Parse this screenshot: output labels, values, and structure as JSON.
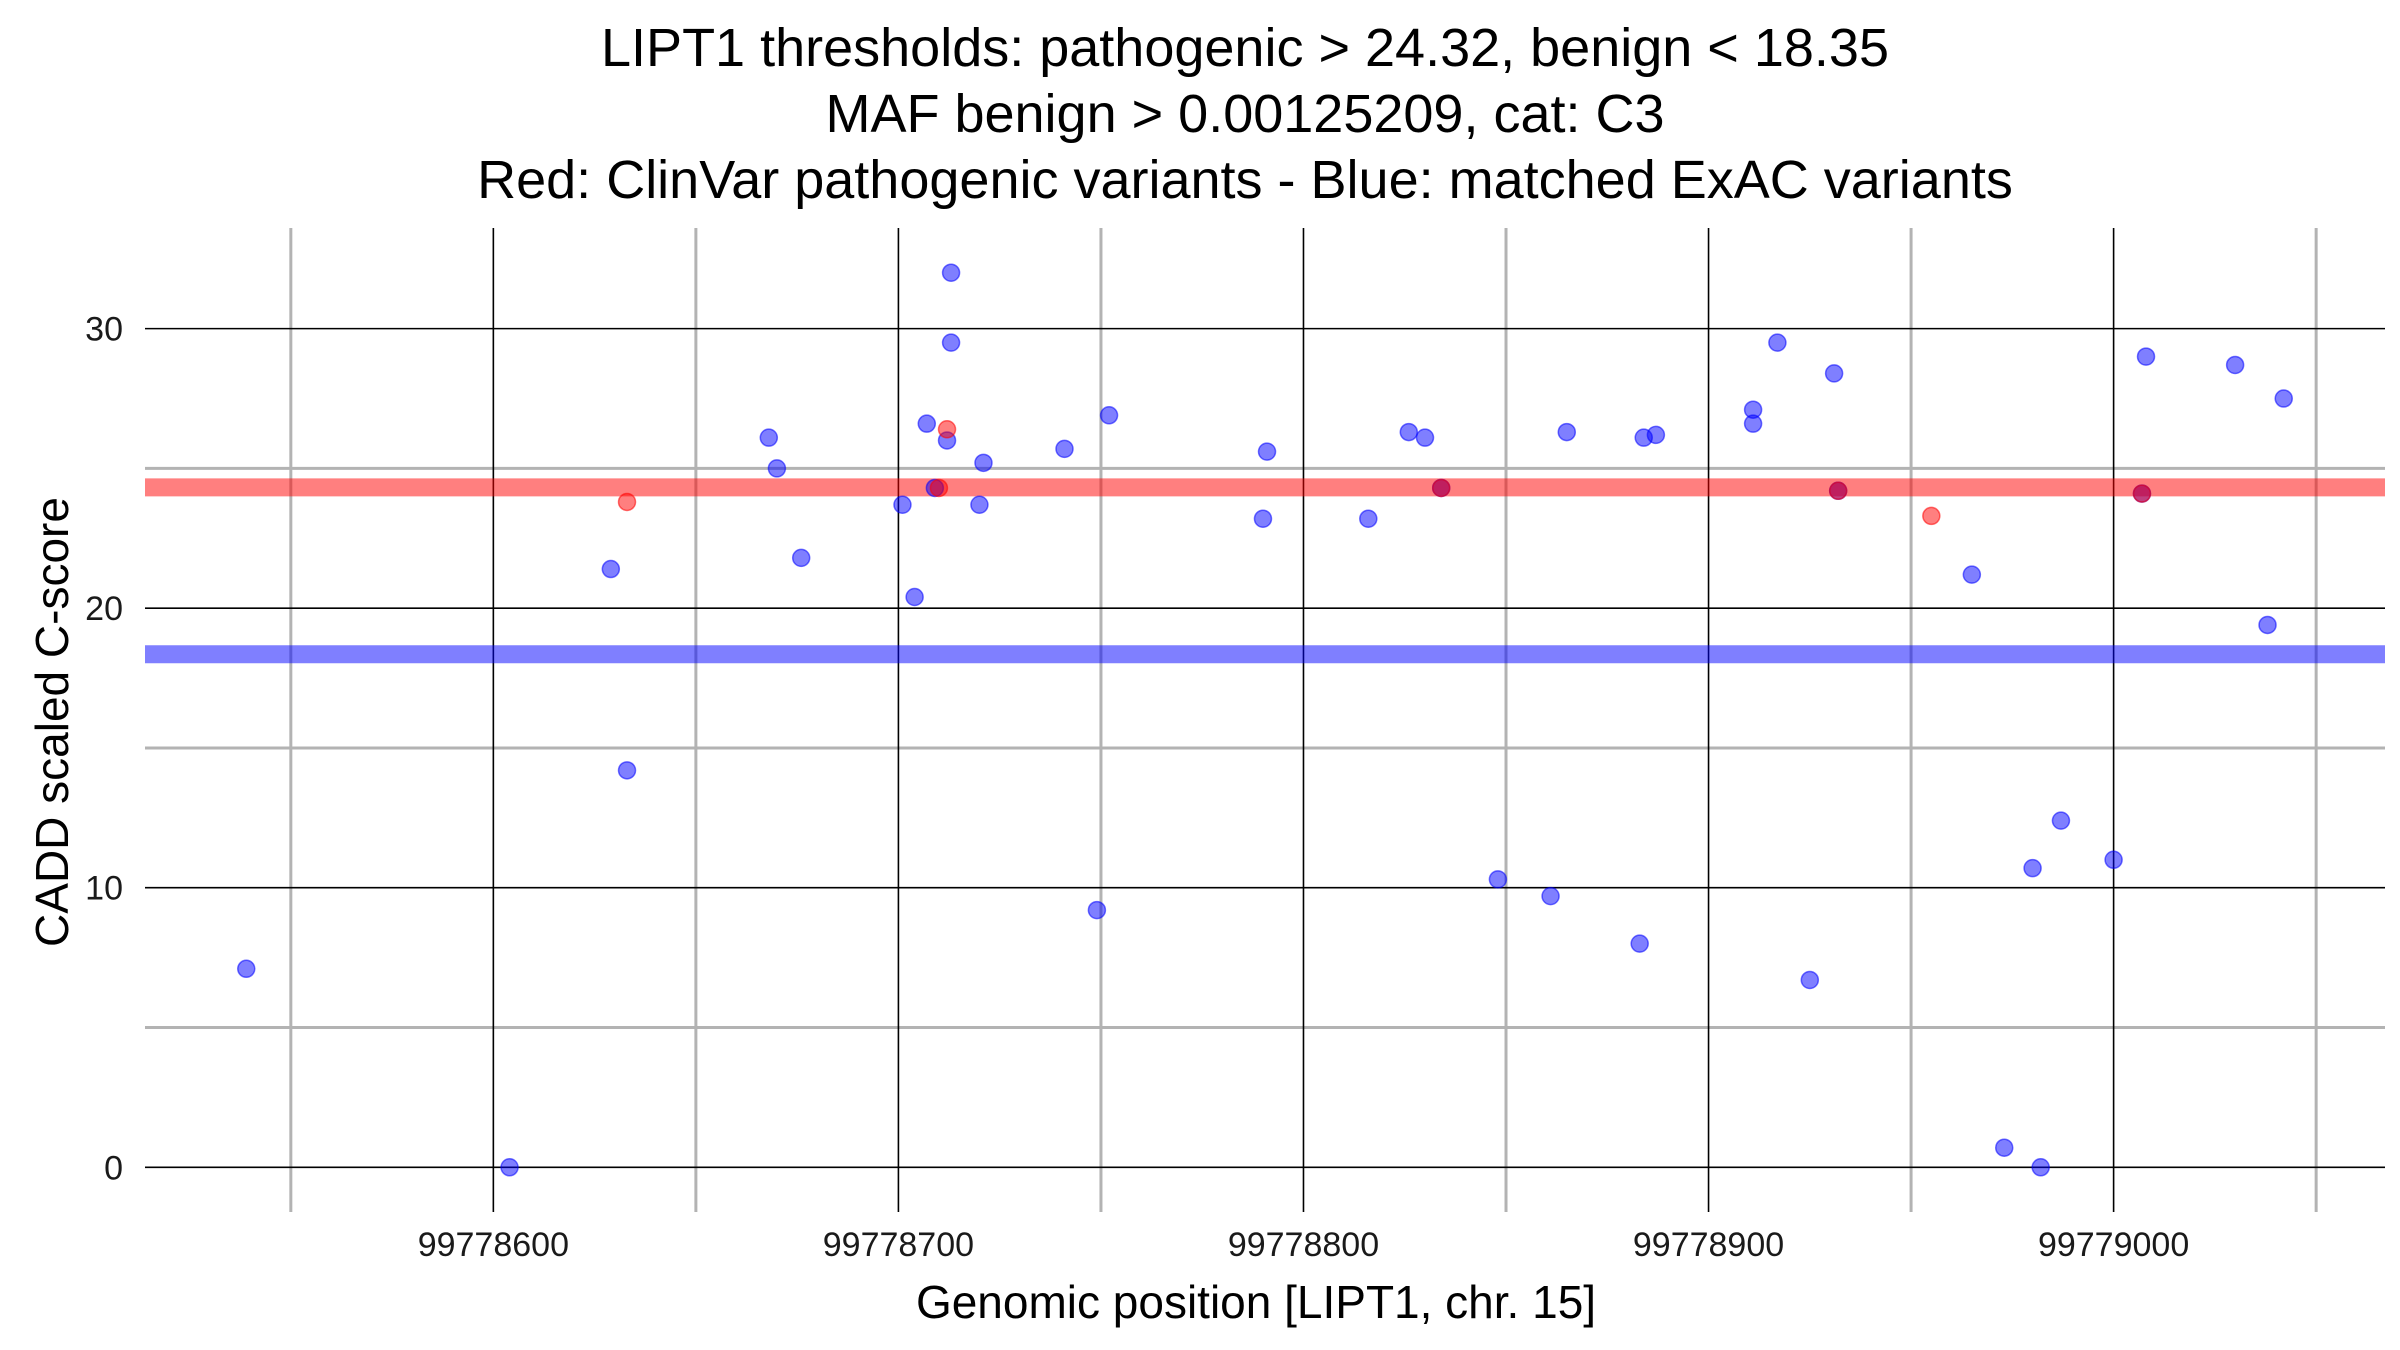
{
  "chart_data": {
    "type": "scatter",
    "title": [
      "LIPT1 thresholds: pathogenic > 24.32, benign < 18.35",
      "MAF benign > 0.00125209, cat: C3",
      "Red: ClinVar pathogenic variants - Blue: matched ExAC variants"
    ],
    "xlabel": "Genomic position [LIPT1, chr. 15]",
    "ylabel": "CADD scaled C-score",
    "xlim": [
      99778514,
      99779067
    ],
    "ylim": [
      -1.6,
      33.6
    ],
    "x_major_ticks": [
      99778600,
      99778700,
      99778800,
      99778900,
      99779000
    ],
    "x_minor_ticks": [
      99778550,
      99778650,
      99778750,
      99778850,
      99778950,
      99779050
    ],
    "y_major_ticks": [
      0,
      10,
      20,
      30
    ],
    "y_minor_ticks": [
      5,
      15,
      25
    ],
    "thresholds": {
      "pathogenic": 24.32,
      "benign": 18.35,
      "maf_benign": 0.00125209,
      "category": "C3"
    },
    "colors": {
      "pathogenic": "#ff0000",
      "benign": "#0000ff",
      "grid_major": "#000000",
      "grid_minor": "#b3b3b3"
    },
    "series": [
      {
        "name": "ClinVar pathogenic variants",
        "color": "#ff0000",
        "points": [
          [
            99778633,
            23.8
          ],
          [
            99778710,
            24.3
          ],
          [
            99778712,
            26.4
          ],
          [
            99778834,
            24.3
          ],
          [
            99778932,
            24.2
          ],
          [
            99778955,
            23.3
          ],
          [
            99779007,
            24.1
          ]
        ]
      },
      {
        "name": "matched ExAC variants",
        "color": "#0000ff",
        "points": [
          [
            99778539,
            7.1
          ],
          [
            99778604,
            0.0
          ],
          [
            99778629,
            21.4
          ],
          [
            99778633,
            14.2
          ],
          [
            99778668,
            26.1
          ],
          [
            99778670,
            25.0
          ],
          [
            99778676,
            21.8
          ],
          [
            99778701,
            23.7
          ],
          [
            99778704,
            20.4
          ],
          [
            99778707,
            26.6
          ],
          [
            99778709,
            24.3
          ],
          [
            99778712,
            26.0
          ],
          [
            99778713,
            29.5
          ],
          [
            99778713,
            32.0
          ],
          [
            99778720,
            23.7
          ],
          [
            99778721,
            25.2
          ],
          [
            99778741,
            25.7
          ],
          [
            99778749,
            9.2
          ],
          [
            99778752,
            26.9
          ],
          [
            99778790,
            23.2
          ],
          [
            99778791,
            25.6
          ],
          [
            99778816,
            23.2
          ],
          [
            99778826,
            26.3
          ],
          [
            99778830,
            26.1
          ],
          [
            99778834,
            24.3
          ],
          [
            99778848,
            10.3
          ],
          [
            99778861,
            9.7
          ],
          [
            99778865,
            26.3
          ],
          [
            99778883,
            8.0
          ],
          [
            99778884,
            26.1
          ],
          [
            99778887,
            26.2
          ],
          [
            99778911,
            26.6
          ],
          [
            99778911,
            27.1
          ],
          [
            99778917,
            29.5
          ],
          [
            99778925,
            6.7
          ],
          [
            99778931,
            28.4
          ],
          [
            99778932,
            24.2
          ],
          [
            99778965,
            21.2
          ],
          [
            99778973,
            0.7
          ],
          [
            99778980,
            10.7
          ],
          [
            99778982,
            0.0
          ],
          [
            99778987,
            12.4
          ],
          [
            99779000,
            11.0
          ],
          [
            99779007,
            24.1
          ],
          [
            99779008,
            29.0
          ],
          [
            99779030,
            28.7
          ],
          [
            99779038,
            19.4
          ],
          [
            99779042,
            27.5
          ]
        ]
      }
    ]
  }
}
